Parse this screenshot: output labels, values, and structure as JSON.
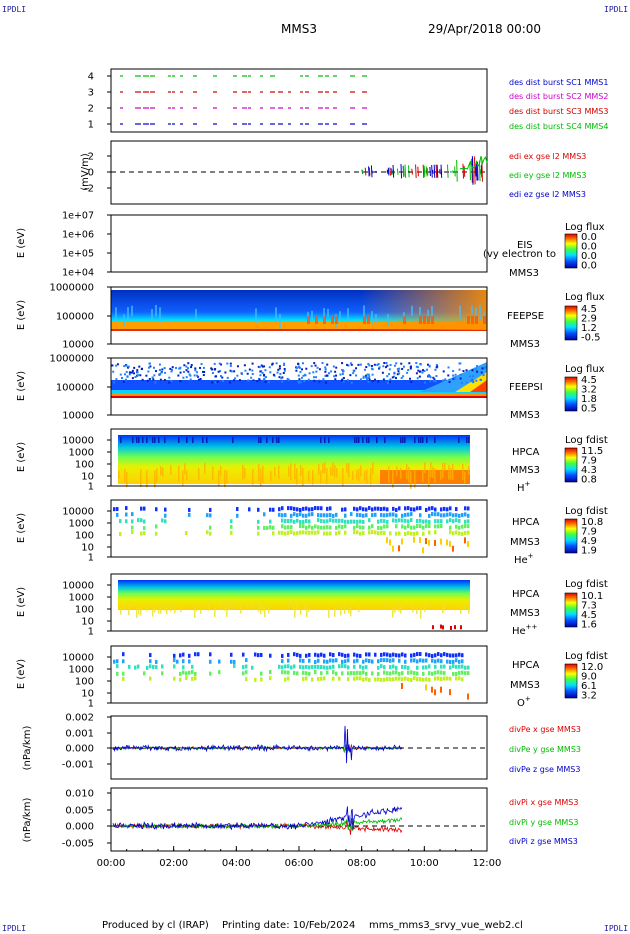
{
  "corner_label": "IPDLI",
  "header": {
    "spacecraft": "MMS3",
    "datetime": "29/Apr/2018 00:00"
  },
  "footer": {
    "produced": "Produced by cl (IRAP)",
    "printing": "Printing date: 10/Feb/2024",
    "file": "mms_mms3_srvy_vue_web2.cl"
  },
  "x_axis": {
    "ticks": [
      "00:00",
      "02:00",
      "04:00",
      "06:00",
      "08:00",
      "10:00",
      "12:00"
    ]
  },
  "chart_data": [
    {
      "type": "scatter",
      "ylim": [
        0.5,
        4.5
      ],
      "yticks": [
        "4",
        "3",
        "2",
        "1"
      ],
      "series": [
        {
          "name": "des dist burst SC1 MMS1",
          "color": "#0000cc",
          "y": 1
        },
        {
          "name": "des dist burst SC2 MMS2",
          "color": "#cc00cc",
          "y": 2
        },
        {
          "name": "des dist burst SC3 MMS3",
          "color": "#cc0000",
          "y": 3
        },
        {
          "name": "des dist burst SC4 MMS4",
          "color": "#00bb00",
          "y": 4
        }
      ]
    },
    {
      "type": "line",
      "ylabel": "(mV/m)",
      "ylim": [
        -3,
        3
      ],
      "yticks": [
        "2",
        "0",
        "-2"
      ],
      "series": [
        {
          "name": "edi ex gse l2 MMS3",
          "color": "#dd0000"
        },
        {
          "name": "edi ey gse l2 MMS3",
          "color": "#00bb00"
        },
        {
          "name": "edi ez gse l2 MMS3",
          "color": "#0000cc"
        }
      ]
    },
    {
      "type": "heatmap",
      "ylabel": "E (eV)",
      "yticks": [
        "1e+07",
        "1e+06",
        "1e+05",
        "1e+04"
      ],
      "instrument": "EIS",
      "spacecraft": "MMS3",
      "overlay_text": "(vy electron to",
      "colorbar": {
        "title": "Log flux",
        "ticks": [
          "0.0",
          "0.0",
          "0.0",
          "0.0"
        ]
      }
    },
    {
      "type": "heatmap",
      "ylabel": "E (eV)",
      "yticks": [
        "1000000",
        "100000",
        "10000"
      ],
      "instrument": "FEEPSE",
      "spacecraft": "MMS3",
      "colorbar": {
        "title": "Log flux",
        "ticks": [
          "4.5",
          "2.9",
          "1.2",
          "-0.5"
        ]
      }
    },
    {
      "type": "heatmap",
      "ylabel": "E (eV)",
      "yticks": [
        "1000000",
        "100000",
        "10000"
      ],
      "instrument": "FEEPSI",
      "spacecraft": "MMS3",
      "colorbar": {
        "title": "Log flux",
        "ticks": [
          "4.5",
          "3.2",
          "1.8",
          "0.5"
        ]
      }
    },
    {
      "type": "heatmap",
      "ylabel": "E (eV)",
      "yticks": [
        "10000",
        "1000",
        "100",
        "10",
        "1"
      ],
      "instrument": "HPCA",
      "spacecraft": "MMS3",
      "species": "H",
      "charge": "+",
      "colorbar": {
        "title": "Log fdist",
        "ticks": [
          "11.5",
          "7.9",
          "4.3",
          "0.8"
        ]
      }
    },
    {
      "type": "heatmap",
      "ylabel": "E (eV)",
      "yticks": [
        "10000",
        "1000",
        "100",
        "10",
        "1"
      ],
      "instrument": "HPCA",
      "spacecraft": "MMS3",
      "species": "He",
      "charge": "+",
      "colorbar": {
        "title": "Log fdist",
        "ticks": [
          "10.8",
          "7.9",
          "4.9",
          "1.9"
        ]
      }
    },
    {
      "type": "heatmap",
      "ylabel": "E (eV)",
      "yticks": [
        "10000",
        "1000",
        "100",
        "10",
        "1"
      ],
      "instrument": "HPCA",
      "spacecraft": "MMS3",
      "species": "He",
      "charge": "++",
      "colorbar": {
        "title": "Log fdist",
        "ticks": [
          "10.1",
          "7.3",
          "4.5",
          "1.6"
        ]
      }
    },
    {
      "type": "heatmap",
      "ylabel": "E (eV)",
      "yticks": [
        "10000",
        "1000",
        "100",
        "10",
        "1"
      ],
      "instrument": "HPCA",
      "spacecraft": "MMS3",
      "species": "O",
      "charge": "+",
      "colorbar": {
        "title": "Log fdist",
        "ticks": [
          "12.0",
          "9.0",
          "6.1",
          "3.2"
        ]
      }
    },
    {
      "type": "line",
      "ylabel": "(nPa/km)",
      "ylim": [
        -0.0015,
        0.0025
      ],
      "yticks": [
        "0.002",
        "0.001",
        "0.000",
        "-0.001"
      ],
      "series": [
        {
          "name": "divPe x gse MMS3",
          "color": "#dd0000"
        },
        {
          "name": "divPe y gse MMS3",
          "color": "#00bb00"
        },
        {
          "name": "divPe z gse MMS3",
          "color": "#0000cc"
        }
      ]
    },
    {
      "type": "line",
      "ylabel": "(nPa/km)",
      "ylim": [
        -0.0065,
        0.012
      ],
      "yticks": [
        "0.010",
        "0.005",
        "0.000",
        "-0.005"
      ],
      "series": [
        {
          "name": "divPi x gse MMS3",
          "color": "#dd0000"
        },
        {
          "name": "divPi y gse MMS3",
          "color": "#00bb00"
        },
        {
          "name": "divPi z gse MMS3",
          "color": "#0000cc"
        }
      ]
    }
  ]
}
